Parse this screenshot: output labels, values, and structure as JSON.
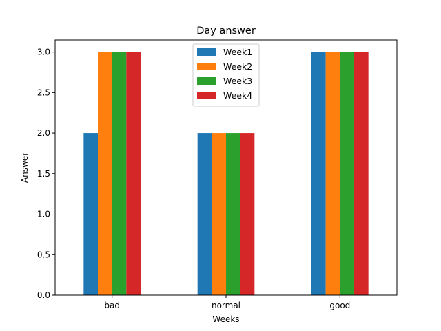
{
  "chart_data": {
    "type": "bar",
    "title": "Day answer",
    "xlabel": "Weeks",
    "ylabel": "Answer",
    "categories": [
      "bad",
      "normal",
      "good"
    ],
    "series": [
      {
        "name": "Week1",
        "values": [
          2,
          2,
          3
        ]
      },
      {
        "name": "Week2",
        "values": [
          3,
          2,
          3
        ]
      },
      {
        "name": "Week3",
        "values": [
          3,
          2,
          3
        ]
      },
      {
        "name": "Week4",
        "values": [
          3,
          2,
          3
        ]
      }
    ],
    "ylim": [
      0,
      3.15
    ],
    "yticks": [
      "0.0",
      "0.5",
      "1.0",
      "1.5",
      "2.0",
      "2.5",
      "3.0"
    ],
    "grid": false,
    "legend_position": "top-center",
    "colors": [
      "#1f77b4",
      "#ff7f0e",
      "#2ca02c",
      "#d62728"
    ]
  }
}
